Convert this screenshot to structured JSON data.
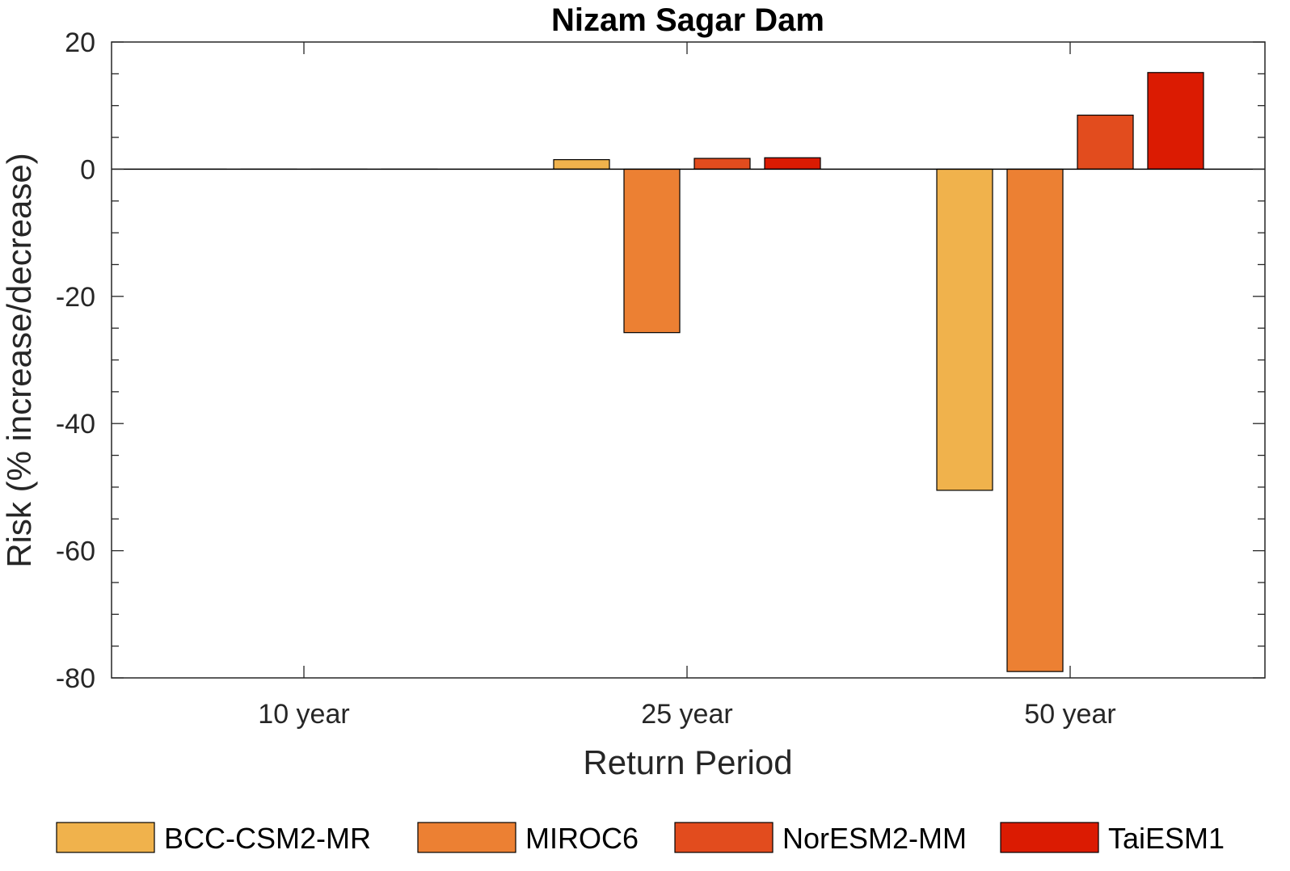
{
  "chart_data": {
    "type": "bar",
    "title": "Nizam Sagar Dam",
    "xlabel": "Return Period",
    "ylabel": "Risk (% increase/decrease)",
    "categories": [
      "10 year",
      "25 year",
      "50 year"
    ],
    "ylim": [
      -80,
      20
    ],
    "yticks": [
      20,
      0,
      -20,
      -40,
      -60,
      -80
    ],
    "ytick_labels": [
      "20",
      "0",
      "-20",
      "-40",
      "-60",
      "-80"
    ],
    "grid": false,
    "legend_position": "bottom",
    "series": [
      {
        "name": "BCC-CSM2-MR",
        "color": "#F0B24C",
        "values": [
          0,
          1.5,
          -50.5
        ]
      },
      {
        "name": "MIROC6",
        "color": "#EC8033",
        "values": [
          0,
          -25.7,
          -79
        ]
      },
      {
        "name": "NorESM2-MM",
        "color": "#E24C1E",
        "values": [
          0,
          1.7,
          8.5
        ]
      },
      {
        "name": "TaiESM1",
        "color": "#DB1B02",
        "values": [
          0,
          1.8,
          15.2
        ]
      }
    ]
  }
}
